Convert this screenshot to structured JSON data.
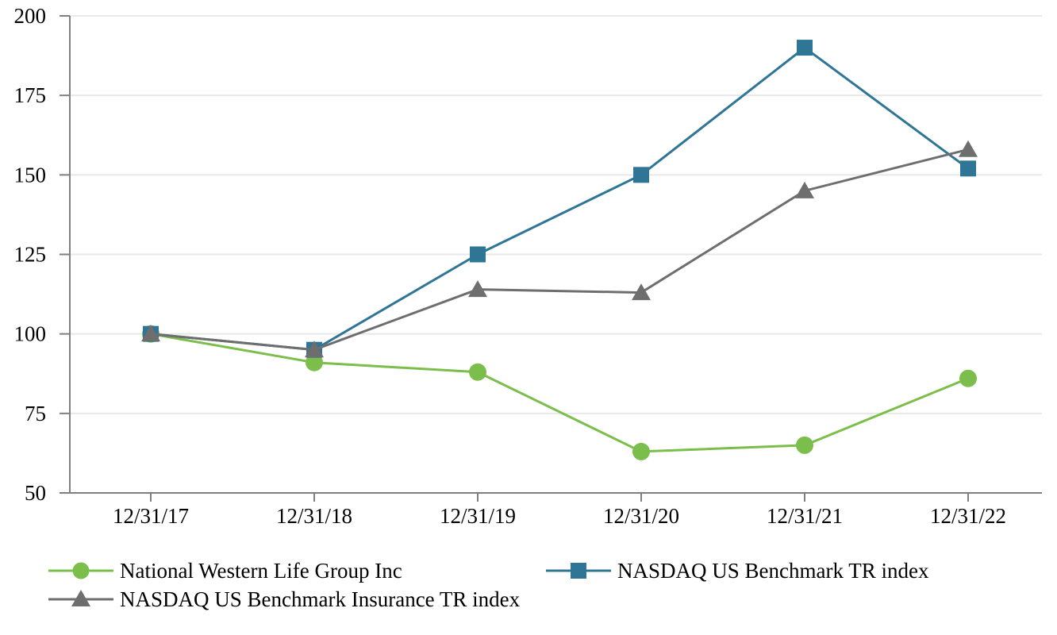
{
  "chart_data": {
    "type": "line",
    "title": "",
    "xlabel": "",
    "ylabel": "",
    "ylim": [
      50,
      200
    ],
    "y_ticks": [
      50,
      75,
      100,
      125,
      150,
      175,
      200
    ],
    "grid": true,
    "legend_position": "bottom",
    "categories": [
      "12/31/17",
      "12/31/18",
      "12/31/19",
      "12/31/20",
      "12/31/21",
      "12/31/22"
    ],
    "series": [
      {
        "name": "National Western Life Group Inc",
        "marker": "circle",
        "color": "#7CBE4B",
        "values": [
          100,
          91,
          88,
          63,
          65,
          86
        ]
      },
      {
        "name": "NASDAQ US Benchmark TR index",
        "marker": "square",
        "color": "#2E7596",
        "values": [
          100,
          95,
          125,
          150,
          190,
          152
        ]
      },
      {
        "name": "NASDAQ US Benchmark Insurance TR index",
        "marker": "triangle",
        "color": "#6E6E6E",
        "values": [
          100,
          95,
          114,
          113,
          145,
          158
        ]
      }
    ],
    "colors": {
      "background": "#FFFFFF",
      "axis": "#7F7F7F",
      "gridline": "#E8E8E8",
      "text": "#000000"
    }
  }
}
